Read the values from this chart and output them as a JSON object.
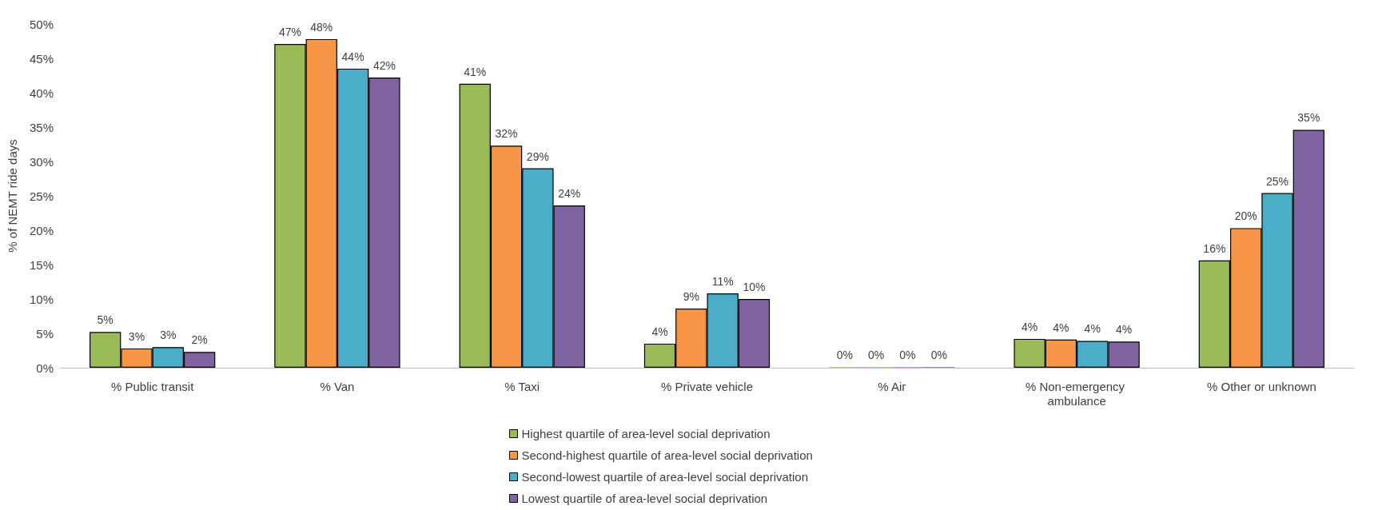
{
  "chart_data": {
    "type": "bar",
    "ylabel": "% of NEMT ride days",
    "categories": [
      "% Public transit",
      "% Van",
      "% Taxi",
      "% Private vehicle",
      "% Air",
      "% Non-emergency ambulance",
      "% Other or unknown"
    ],
    "series": [
      {
        "name": "Highest quartile of area-level social deprivation",
        "color": "#9bbb59",
        "values": [
          5.2,
          47.1,
          41.3,
          3.5,
          0.1,
          4.2,
          15.6
        ],
        "value_labels": [
          "5%",
          "47%",
          "41%",
          "4%",
          "0%",
          "4%",
          "16%"
        ]
      },
      {
        "name": "Second-highest quartile of area-level social deprivation",
        "color": "#f79646",
        "values": [
          2.8,
          47.8,
          32.3,
          8.6,
          0.1,
          4.1,
          20.3
        ],
        "value_labels": [
          "3%",
          "48%",
          "32%",
          "9%",
          "0%",
          "4%",
          "20%"
        ]
      },
      {
        "name": "Second-lowest quartile of area-level social deprivation",
        "color": "#4bacc6",
        "values": [
          3.0,
          43.5,
          29.0,
          10.8,
          0.1,
          3.9,
          25.4
        ],
        "value_labels": [
          "3%",
          "44%",
          "29%",
          "11%",
          "0%",
          "4%",
          "25%"
        ]
      },
      {
        "name": "Lowest quartile of area-level social deprivation",
        "color": "#8064a2",
        "values": [
          2.3,
          42.2,
          23.6,
          10.0,
          0.1,
          3.8,
          34.6
        ],
        "value_labels": [
          "2%",
          "42%",
          "24%",
          "10%",
          "0%",
          "4%",
          "35%"
        ]
      }
    ],
    "ylim": [
      0,
      50
    ],
    "yticks": [
      {
        "value": 0,
        "label": "0%"
      },
      {
        "value": 5,
        "label": "5%"
      },
      {
        "value": 10,
        "label": "10%"
      },
      {
        "value": 15,
        "label": "15%"
      },
      {
        "value": 20,
        "label": "20%"
      },
      {
        "value": 25,
        "label": "25%"
      },
      {
        "value": 30,
        "label": "30%"
      },
      {
        "value": 35,
        "label": "35%"
      },
      {
        "value": 40,
        "label": "40%"
      },
      {
        "value": 45,
        "label": "45%"
      },
      {
        "value": 50,
        "label": "50%"
      }
    ],
    "grid": false,
    "legend": "bottom"
  }
}
